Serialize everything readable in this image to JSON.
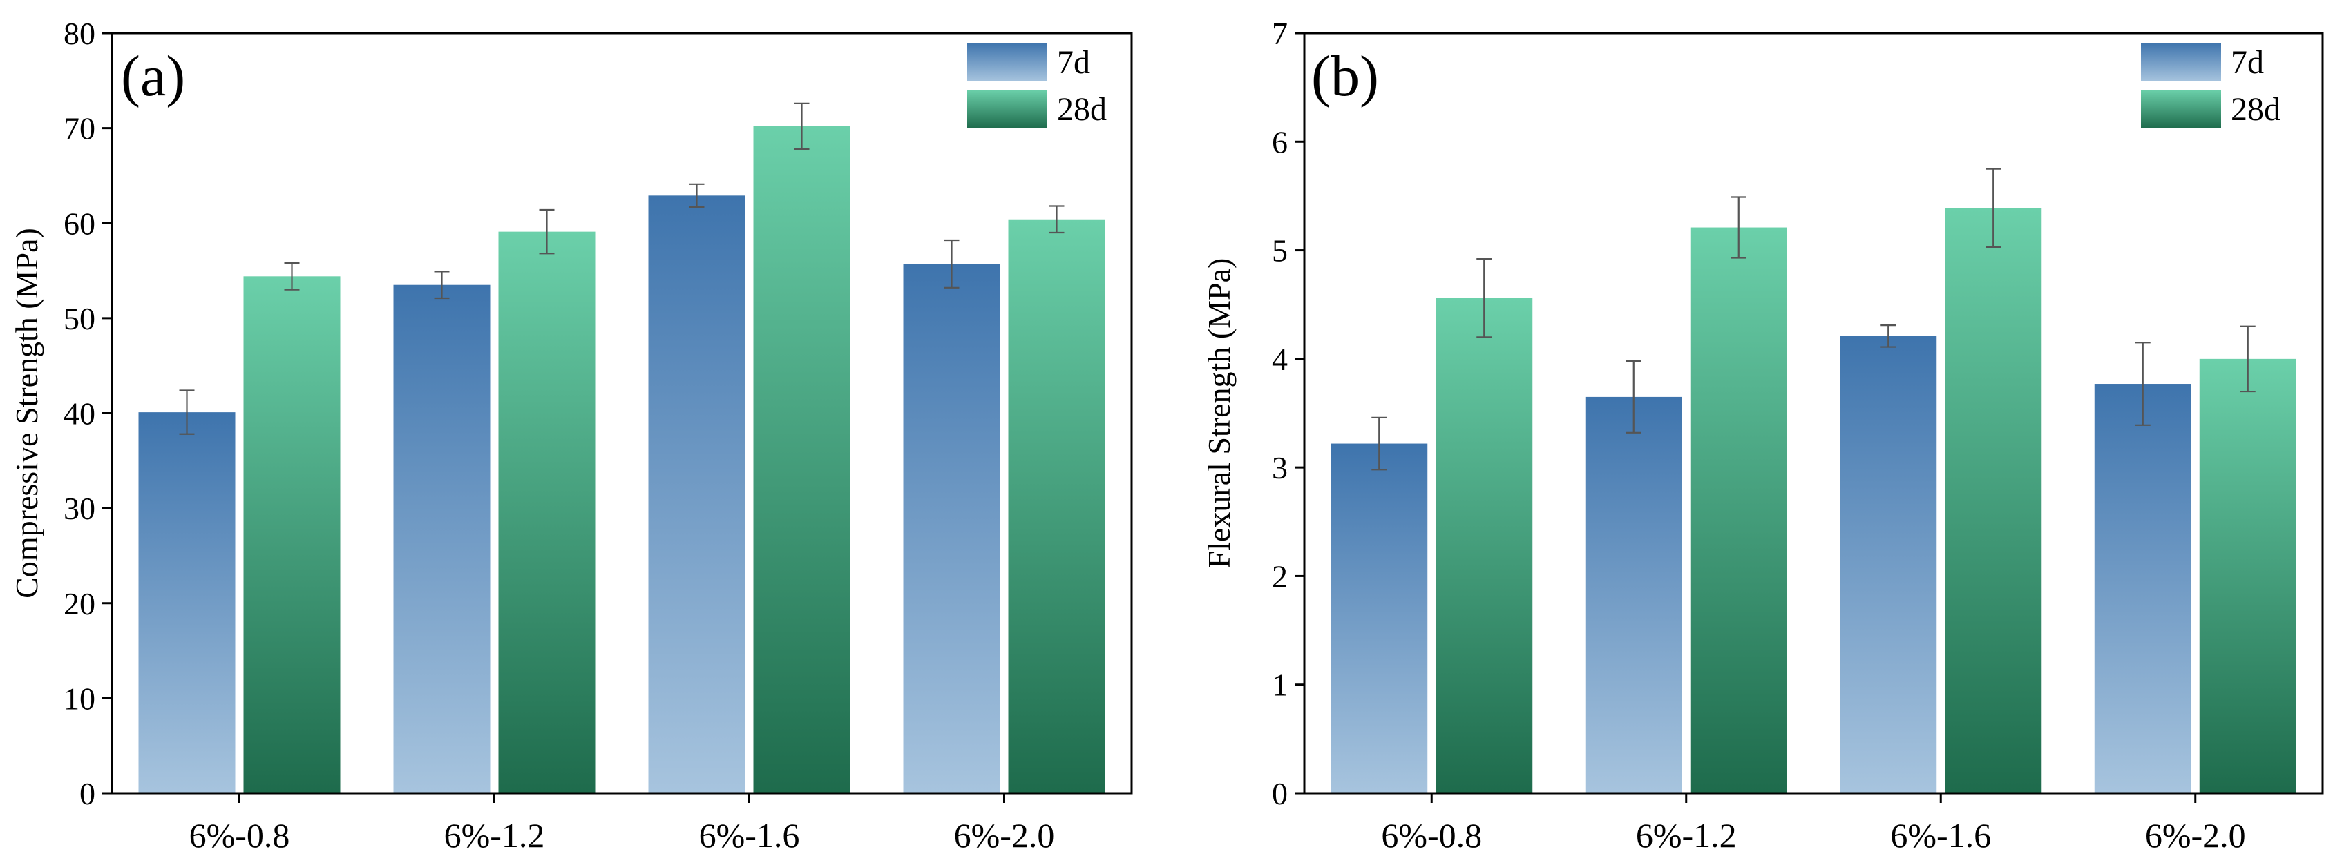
{
  "chart_data": [
    {
      "type": "bar",
      "panel_label": "(a)",
      "title": "",
      "xlabel": "",
      "ylabel": "Compressive Strength (MPa)",
      "categories": [
        "6%-0.8",
        "6%-1.2",
        "6%-1.6",
        "6%-2.0"
      ],
      "ylim": [
        0,
        80
      ],
      "yticks": [
        0,
        10,
        20,
        30,
        40,
        50,
        60,
        70,
        80
      ],
      "grid": false,
      "legend_position": "top-right",
      "series": [
        {
          "name": "7d",
          "values": [
            40.1,
            53.5,
            62.9,
            55.7
          ],
          "errors": [
            2.3,
            1.4,
            1.2,
            2.5
          ],
          "color_top": "#3e74ad",
          "color_bottom": "#a7c4de"
        },
        {
          "name": "28d",
          "values": [
            54.4,
            59.1,
            70.2,
            60.4
          ],
          "errors": [
            1.4,
            2.3,
            2.4,
            1.4
          ],
          "color_top": "#6bd0aa",
          "color_bottom": "#1e6b4c"
        }
      ]
    },
    {
      "type": "bar",
      "panel_label": "(b)",
      "title": "",
      "xlabel": "",
      "ylabel": "Flexural Strength (MPa)",
      "categories": [
        "6%-0.8",
        "6%-1.2",
        "6%-1.6",
        "6%-2.0"
      ],
      "ylim": [
        0,
        7
      ],
      "yticks": [
        0,
        1,
        2,
        3,
        4,
        5,
        6,
        7
      ],
      "grid": false,
      "legend_position": "top-right",
      "series": [
        {
          "name": "7d",
          "values": [
            3.22,
            3.65,
            4.21,
            3.77
          ],
          "errors": [
            0.24,
            0.33,
            0.1,
            0.38
          ],
          "color_top": "#3e74ad",
          "color_bottom": "#a7c4de"
        },
        {
          "name": "28d",
          "values": [
            4.56,
            5.21,
            5.39,
            4.0
          ],
          "errors": [
            0.36,
            0.28,
            0.36,
            0.3
          ],
          "color_top": "#6bd0aa",
          "color_bottom": "#1e6b4c"
        }
      ]
    }
  ]
}
